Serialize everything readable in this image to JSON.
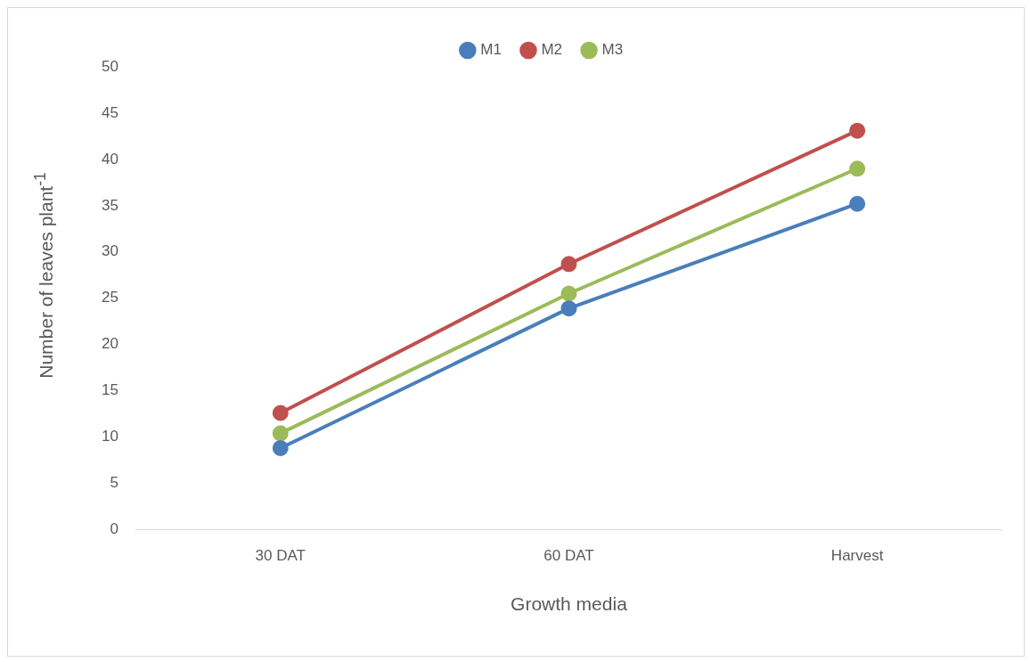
{
  "chart_data": {
    "type": "line",
    "xlabel": "Growth media",
    "ylabel": "Number of leaves plant$^{-1}$",
    "categories": [
      "30 DAT",
      "60 DAT",
      "Harvest"
    ],
    "series": [
      {
        "name": "M1",
        "color": "#4a7ebb",
        "values": [
          8.8,
          23.9,
          35.2
        ]
      },
      {
        "name": "M2",
        "color": "#c0504d",
        "values": [
          12.6,
          28.7,
          43.1
        ]
      },
      {
        "name": "M3",
        "color": "#9bbb59",
        "values": [
          10.4,
          25.5,
          39.0
        ]
      }
    ],
    "ylim": [
      0,
      50
    ],
    "yticks": [
      0,
      5,
      10,
      15,
      20,
      25,
      30,
      35,
      40,
      45,
      50
    ],
    "grid": false,
    "legend": "top",
    "marker": "circle",
    "line_style": "solid"
  }
}
